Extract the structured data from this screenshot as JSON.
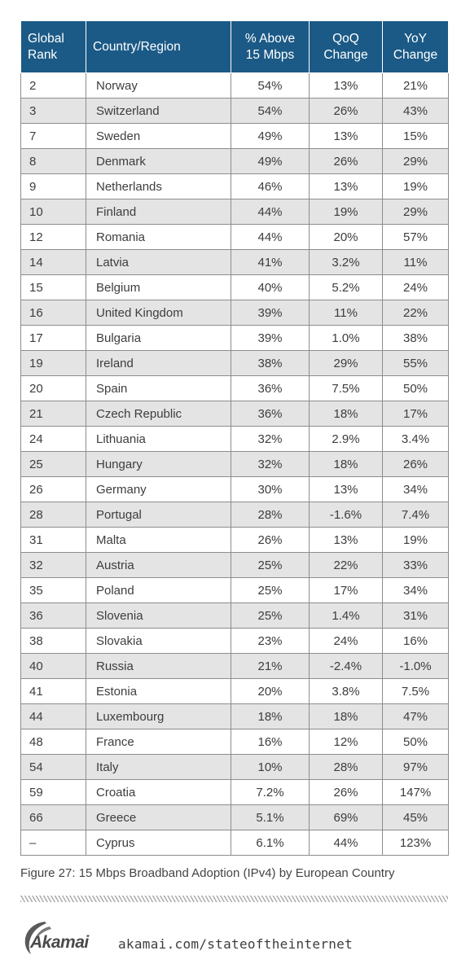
{
  "table": {
    "headers": {
      "rank": [
        "Global",
        "Rank"
      ],
      "country": [
        "Country/Region"
      ],
      "above15": [
        "% Above",
        "15 Mbps"
      ],
      "qoq": [
        "QoQ",
        "Change"
      ],
      "yoy": [
        "YoY",
        "Change"
      ]
    },
    "rows": [
      {
        "rank": "2",
        "country": "Norway",
        "above15": "54%",
        "qoq": "13%",
        "yoy": "21%"
      },
      {
        "rank": "3",
        "country": "Switzerland",
        "above15": "54%",
        "qoq": "26%",
        "yoy": "43%"
      },
      {
        "rank": "7",
        "country": "Sweden",
        "above15": "49%",
        "qoq": "13%",
        "yoy": "15%"
      },
      {
        "rank": "8",
        "country": "Denmark",
        "above15": "49%",
        "qoq": "26%",
        "yoy": "29%"
      },
      {
        "rank": "9",
        "country": "Netherlands",
        "above15": "46%",
        "qoq": "13%",
        "yoy": "19%"
      },
      {
        "rank": "10",
        "country": "Finland",
        "above15": "44%",
        "qoq": "19%",
        "yoy": "29%"
      },
      {
        "rank": "12",
        "country": "Romania",
        "above15": "44%",
        "qoq": "20%",
        "yoy": "57%"
      },
      {
        "rank": "14",
        "country": "Latvia",
        "above15": "41%",
        "qoq": "3.2%",
        "yoy": "11%"
      },
      {
        "rank": "15",
        "country": "Belgium",
        "above15": "40%",
        "qoq": "5.2%",
        "yoy": "24%"
      },
      {
        "rank": "16",
        "country": "United Kingdom",
        "above15": "39%",
        "qoq": "11%",
        "yoy": "22%"
      },
      {
        "rank": "17",
        "country": "Bulgaria",
        "above15": "39%",
        "qoq": "1.0%",
        "yoy": "38%"
      },
      {
        "rank": "19",
        "country": "Ireland",
        "above15": "38%",
        "qoq": "29%",
        "yoy": "55%"
      },
      {
        "rank": "20",
        "country": "Spain",
        "above15": "36%",
        "qoq": "7.5%",
        "yoy": "50%"
      },
      {
        "rank": "21",
        "country": "Czech Republic",
        "above15": "36%",
        "qoq": "18%",
        "yoy": "17%"
      },
      {
        "rank": "24",
        "country": "Lithuania",
        "above15": "32%",
        "qoq": "2.9%",
        "yoy": "3.4%"
      },
      {
        "rank": "25",
        "country": "Hungary",
        "above15": "32%",
        "qoq": "18%",
        "yoy": "26%"
      },
      {
        "rank": "26",
        "country": "Germany",
        "above15": "30%",
        "qoq": "13%",
        "yoy": "34%"
      },
      {
        "rank": "28",
        "country": "Portugal",
        "above15": "28%",
        "qoq": "-1.6%",
        "yoy": "7.4%"
      },
      {
        "rank": "31",
        "country": "Malta",
        "above15": "26%",
        "qoq": "13%",
        "yoy": "19%"
      },
      {
        "rank": "32",
        "country": "Austria",
        "above15": "25%",
        "qoq": "22%",
        "yoy": "33%"
      },
      {
        "rank": "35",
        "country": "Poland",
        "above15": "25%",
        "qoq": "17%",
        "yoy": "34%"
      },
      {
        "rank": "36",
        "country": "Slovenia",
        "above15": "25%",
        "qoq": "1.4%",
        "yoy": "31%"
      },
      {
        "rank": "38",
        "country": "Slovakia",
        "above15": "23%",
        "qoq": "24%",
        "yoy": "16%"
      },
      {
        "rank": "40",
        "country": "Russia",
        "above15": "21%",
        "qoq": "-2.4%",
        "yoy": "-1.0%"
      },
      {
        "rank": "41",
        "country": "Estonia",
        "above15": "20%",
        "qoq": "3.8%",
        "yoy": "7.5%"
      },
      {
        "rank": "44",
        "country": "Luxembourg",
        "above15": "18%",
        "qoq": "18%",
        "yoy": "47%"
      },
      {
        "rank": "48",
        "country": "France",
        "above15": "16%",
        "qoq": "12%",
        "yoy": "50%"
      },
      {
        "rank": "54",
        "country": "Italy",
        "above15": "10%",
        "qoq": "28%",
        "yoy": "97%"
      },
      {
        "rank": "59",
        "country": "Croatia",
        "above15": "7.2%",
        "qoq": "26%",
        "yoy": "147%"
      },
      {
        "rank": "66",
        "country": "Greece",
        "above15": "5.1%",
        "qoq": "69%",
        "yoy": "45%"
      },
      {
        "rank": "–",
        "country": "Cyprus",
        "above15": "6.1%",
        "qoq": "44%",
        "yoy": "123%"
      }
    ]
  },
  "caption": "Figure 27: 15 Mbps Broadband Adoption (IPv4) by European Country",
  "footer": {
    "logo_text": "Akamai",
    "url": "akamai.com/stateoftheinternet"
  },
  "colors": {
    "header_bg": "#1b5a86",
    "stripe": "#e4e4e4"
  },
  "icons": [
    "akamai-logo-swoosh-icon"
  ]
}
